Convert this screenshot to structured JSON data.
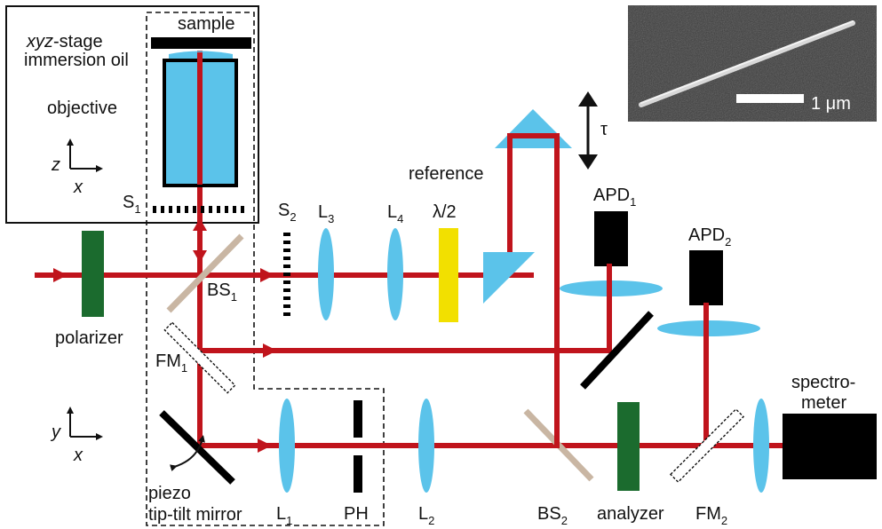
{
  "labels": {
    "sample": "sample",
    "xyz_italic": "xyz",
    "stage_suffix": "-stage",
    "immersion_oil": "immersion oil",
    "objective": "objective",
    "reference": "reference",
    "tau": "τ",
    "polarizer": "polarizer",
    "analyzer": "analyzer",
    "spectrometer_line1": "spectro-",
    "spectrometer_line2": "meter",
    "piezo_line1": "piezo",
    "piezo_line2": "tip-tilt mirror",
    "lambda_half": "λ/2",
    "PH": "PH",
    "scale_bar": "1 μm"
  },
  "components": {
    "S1": {
      "main": "S",
      "sub": "1"
    },
    "S2": {
      "main": "S",
      "sub": "2"
    },
    "L1": {
      "main": "L",
      "sub": "1"
    },
    "L2": {
      "main": "L",
      "sub": "2"
    },
    "L3": {
      "main": "L",
      "sub": "3"
    },
    "L4": {
      "main": "L",
      "sub": "4"
    },
    "BS1": {
      "main": "BS",
      "sub": "1"
    },
    "BS2": {
      "main": "BS",
      "sub": "2"
    },
    "FM1": {
      "main": "FM",
      "sub": "1"
    },
    "FM2": {
      "main": "FM",
      "sub": "2"
    },
    "APD1": {
      "main": "APD",
      "sub": "1"
    },
    "APD2": {
      "main": "APD",
      "sub": "2"
    }
  },
  "axes": {
    "top": {
      "vertical": "z",
      "horizontal": "x"
    },
    "bottom": {
      "vertical": "y",
      "horizontal": "x"
    }
  },
  "colors": {
    "beam": "#c0141c",
    "lens": "#5bc3ea",
    "polarizer": "#1b6b2e",
    "waveplate": "#f2e000",
    "beamsplitter": "#c9b6a3",
    "detector": "#000000",
    "sem_background": "#3c3c3c"
  }
}
